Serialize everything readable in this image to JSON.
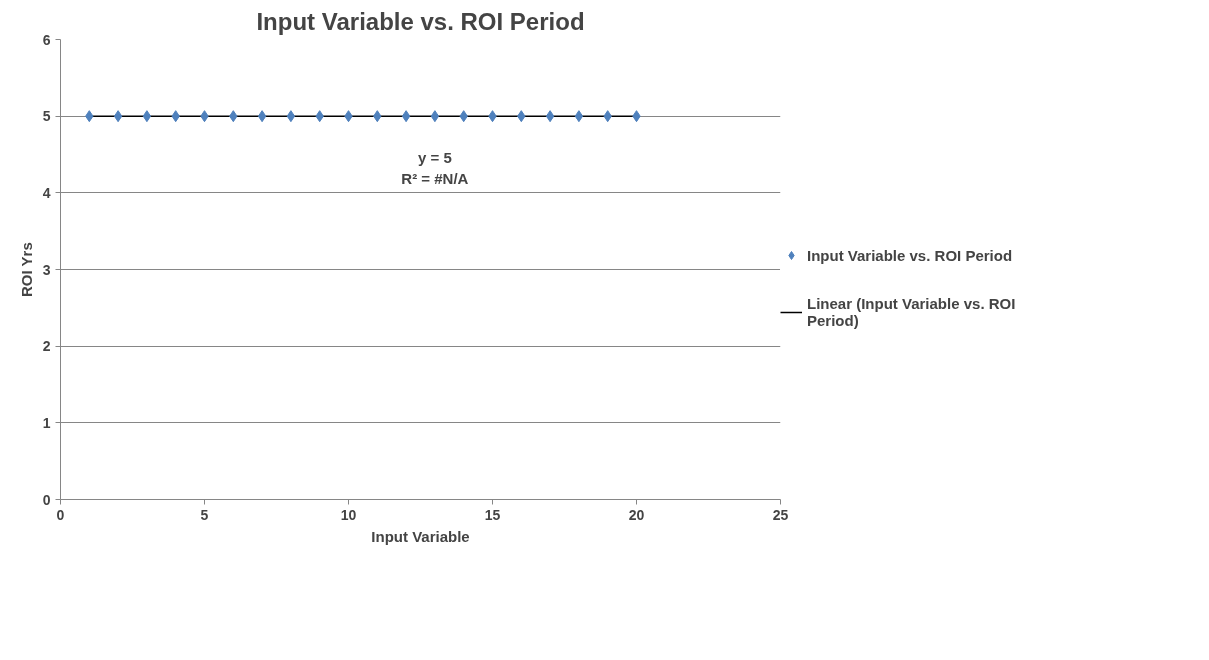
{
  "chart_data": {
    "type": "scatter",
    "title": "Input Variable vs. ROI Period",
    "xlabel": "Input Variable",
    "ylabel": "ROI Yrs",
    "xlim": [
      0,
      25
    ],
    "xticks": [
      0,
      5,
      10,
      15,
      20,
      25
    ],
    "ylim": [
      0,
      6
    ],
    "yticks": [
      0,
      1,
      2,
      3,
      4,
      5,
      6
    ],
    "grid": "y",
    "legend": "right",
    "annotations": [
      "y = 5",
      "R² = #N/A"
    ],
    "series": [
      {
        "name": "Input Variable vs. ROI Period",
        "marker": "diamond",
        "color": "#4f81bd",
        "x": [
          1,
          2,
          3,
          4,
          5,
          6,
          7,
          8,
          9,
          10,
          11,
          12,
          13,
          14,
          15,
          16,
          17,
          18,
          19,
          20
        ],
        "values": [
          5,
          5,
          5,
          5,
          5,
          5,
          5,
          5,
          5,
          5,
          5,
          5,
          5,
          5,
          5,
          5,
          5,
          5,
          5,
          5
        ]
      },
      {
        "name": "Linear (Input Variable vs. ROI Period)",
        "type": "line",
        "marker": "none",
        "color": "#000000",
        "x": [
          1,
          20
        ],
        "values": [
          5,
          5
        ]
      }
    ]
  }
}
